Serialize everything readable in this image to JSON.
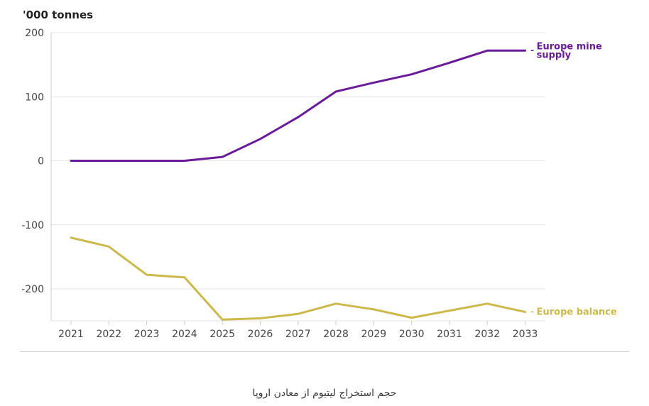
{
  "unit_label": "'000 tonnes",
  "caption": "حجم استخراج لیتیوم از معادن اروپا",
  "colors": {
    "mine_supply": "#6a1b9a",
    "balance": "#cdb84a",
    "grid": "#e6e6e6"
  },
  "chart_data": {
    "type": "line",
    "title": "",
    "xlabel": "",
    "ylabel": "'000 tonnes",
    "x": [
      2021,
      2022,
      2023,
      2024,
      2025,
      2026,
      2027,
      2028,
      2029,
      2030,
      2031,
      2032,
      2033
    ],
    "ylim": [
      -250,
      200
    ],
    "yticks": [
      200,
      100,
      0,
      -100,
      -200
    ],
    "grid": true,
    "series": [
      {
        "name": "Europe mine supply",
        "label_lines": [
          "Europe mine",
          "supply"
        ],
        "values": [
          0,
          0,
          0,
          0,
          6,
          34,
          68,
          108,
          122,
          135,
          153,
          172,
          172
        ]
      },
      {
        "name": "Europe balance",
        "label_lines": [
          "Europe balance"
        ],
        "values": [
          -120,
          -134,
          -178,
          -182,
          -248,
          -246,
          -239,
          -223,
          -232,
          -245,
          -234,
          -223,
          -236
        ]
      }
    ]
  }
}
